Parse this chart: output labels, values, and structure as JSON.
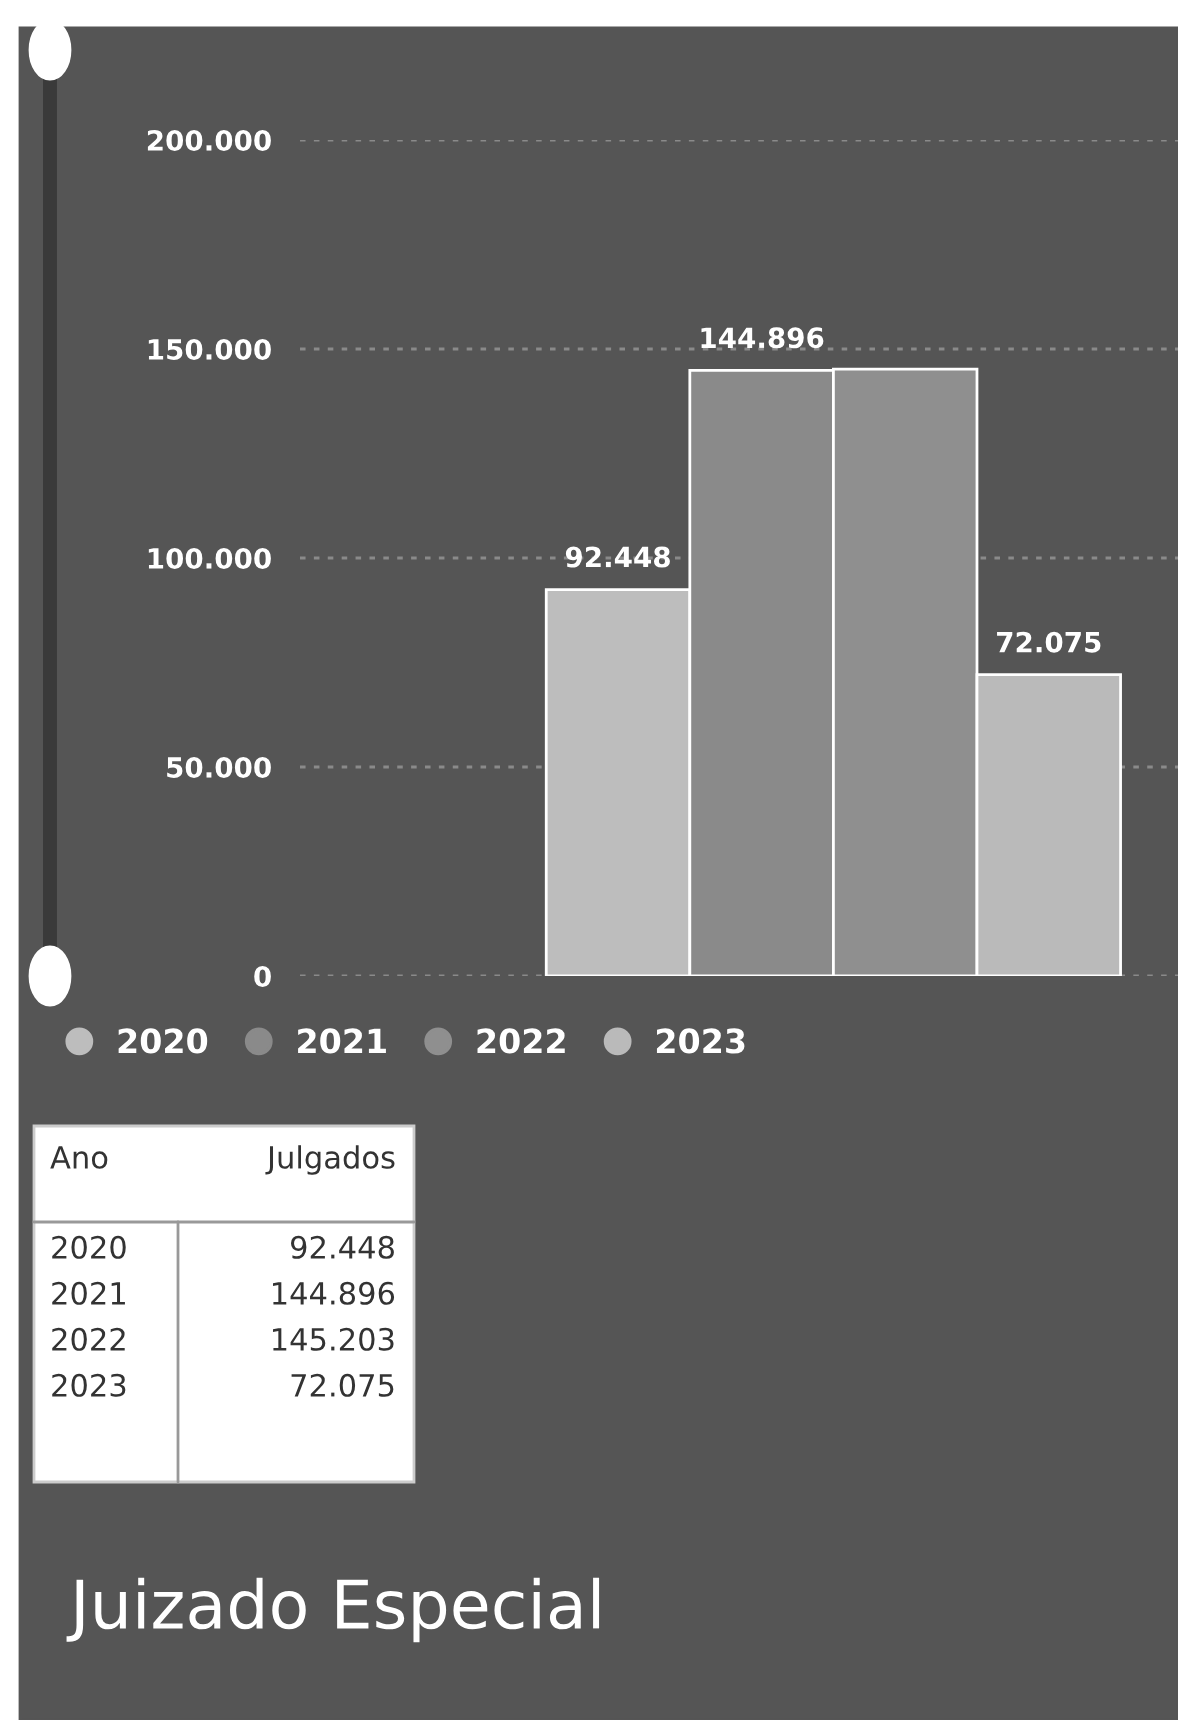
{
  "chart_data": {
    "type": "bar",
    "title": "Juizado Especial",
    "categories": [
      null
    ],
    "series": [
      {
        "name": "2020",
        "color": "#bdbdbd",
        "values": [
          92448
        ],
        "value_labels": [
          "92.448"
        ]
      },
      {
        "name": "2021",
        "color": "#8a8a8a",
        "values": [
          144896
        ],
        "value_labels": [
          "144.896"
        ]
      },
      {
        "name": "2022",
        "color": "#8f8f8f",
        "values": [
          145203
        ],
        "value_labels": [
          null
        ]
      },
      {
        "name": "2023",
        "color": "#bababa",
        "values": [
          72075
        ],
        "value_labels": [
          "72.075"
        ]
      }
    ],
    "ylim": [
      0,
      200000
    ],
    "yticks": [
      0,
      {
        "value": 50000,
        "label": "50.000"
      },
      {
        "value": 100000,
        "label": "100.000"
      },
      {
        "value": 150000,
        "label": "150.000"
      },
      {
        "value": 200000,
        "label": "200.000"
      }
    ],
    "grid": "y",
    "legend": "bottom",
    "tick_labels": "y",
    "annotations": [
      "Ano",
      "Julgados",
      "2020",
      "92.448",
      "2021",
      "144.896",
      "2022",
      "145.203",
      "2023",
      "72.075"
    ]
  }
}
